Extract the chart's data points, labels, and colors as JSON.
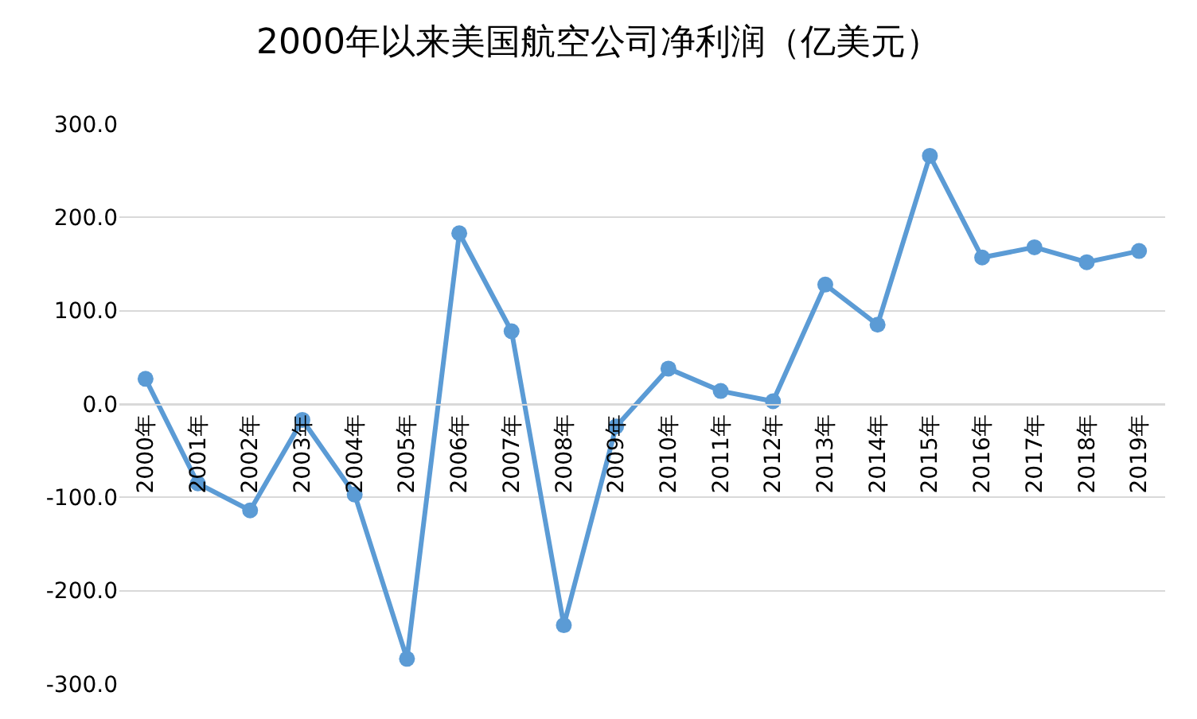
{
  "chart_data": {
    "type": "line",
    "title": "2000年以来美国航空公司净利润（亿美元）",
    "categories": [
      "2000年",
      "2001年",
      "2002年",
      "2003年",
      "2004年",
      "2005年",
      "2006年",
      "2007年",
      "2008年",
      "2009年",
      "2010年",
      "2011年",
      "2012年",
      "2013年",
      "2014年",
      "2015年",
      "2016年",
      "2017年",
      "2018年",
      "2019年"
    ],
    "series": [
      {
        "color": "#5b9bd5",
        "values": [
          27,
          -85,
          -114,
          -17,
          -97,
          -273,
          183,
          78,
          -237,
          -24,
          38,
          14,
          3,
          128,
          85,
          266,
          157,
          168,
          152,
          164
        ]
      }
    ],
    "ylim": [
      -300,
      300
    ],
    "yticks": [
      {
        "value": -300,
        "label": "-300.0"
      },
      {
        "value": -200,
        "label": "-200.0"
      },
      {
        "value": -100,
        "label": "-100.0"
      },
      {
        "value": 0,
        "label": "0.0"
      },
      {
        "value": 100,
        "label": "100.0"
      },
      {
        "value": 200,
        "label": "200.0"
      },
      {
        "value": 300,
        "label": "300.0"
      }
    ],
    "grid": "y",
    "marker": "circle",
    "line_style": "solid"
  }
}
